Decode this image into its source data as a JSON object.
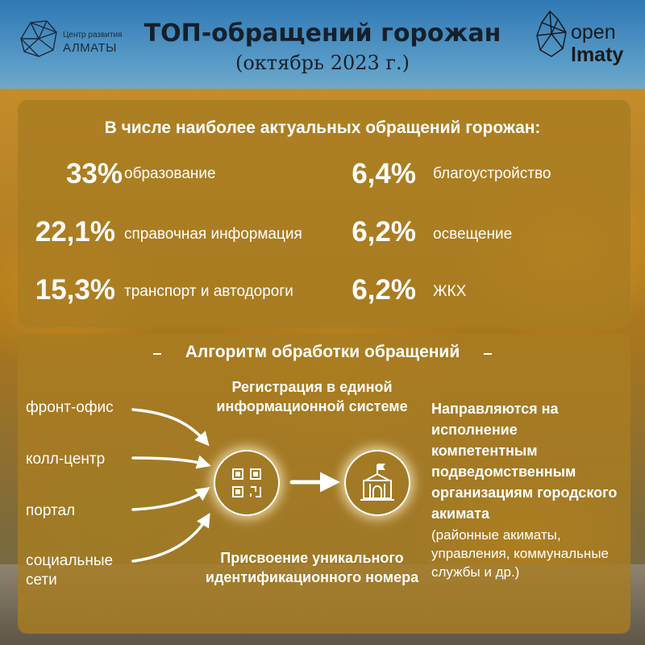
{
  "header": {
    "title": "ТОП-обращений горожан",
    "subtitle": "(октябрь 2023 г.)",
    "logo_left": {
      "line1": "Центр развития",
      "line2": "АЛМАТЫ"
    },
    "logo_right": {
      "line1": "open",
      "line2": "lmaty"
    }
  },
  "stats": {
    "heading": "В числе наиболее актуальных обращений горожан:",
    "items": [
      {
        "percent": "33%",
        "label": "образование"
      },
      {
        "percent": "22,1%",
        "label": "справочная информация"
      },
      {
        "percent": "15,3%",
        "label": "транспорт и автодороги"
      },
      {
        "percent": "6,4%",
        "label": "благоустройство"
      },
      {
        "percent": "6,2%",
        "label": "освещение"
      },
      {
        "percent": "6,2%",
        "label": "ЖКХ"
      }
    ]
  },
  "algorithm": {
    "heading": "Алгоритм обработки обращений",
    "channels": [
      "фронт-офис",
      "колл-центр",
      "портал",
      "социальные сети"
    ],
    "registration": "Регистрация в единой информационной системе",
    "assignment": "Присвоение уникального идентификационного номера",
    "routing": "Направляются на исполнение компетентным подведомственным организациям городского акимата",
    "routing_note": "(районные акиматы, управления, коммунальные службы и др.)"
  },
  "icons": [
    "qr-code-icon",
    "akimat-building-icon",
    "arrow-right-icon",
    "curved-arrow-icon"
  ],
  "colors": {
    "panel": "#a87c22",
    "text": "#ffffff",
    "title": "#15202b"
  }
}
